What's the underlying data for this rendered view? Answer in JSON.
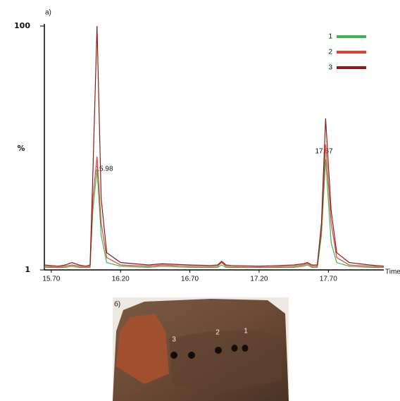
{
  "chart_data": {
    "type": "line",
    "panel_label": "a)",
    "y_label": "%",
    "x_label": "Time",
    "x": [
      15.65,
      15.75,
      15.8,
      15.85,
      15.9,
      15.95,
      15.98,
      16.0,
      16.03,
      16.06,
      16.1,
      16.2,
      16.4,
      16.5,
      16.7,
      16.85,
      16.9,
      16.93,
      16.96,
      17.0,
      17.2,
      17.45,
      17.52,
      17.55,
      17.58,
      17.62,
      17.65,
      17.68,
      17.72,
      17.76,
      17.85,
      18.0,
      18.1
    ],
    "series": [
      {
        "name": "1",
        "color": "#3cb54a",
        "values": [
          2,
          2,
          2,
          2.5,
          2,
          2,
          2,
          25,
          42,
          15,
          4,
          2.5,
          2,
          2.5,
          2,
          2,
          2,
          3,
          2,
          2,
          2,
          2,
          2.5,
          3,
          2,
          2,
          15,
          46,
          12,
          4,
          2.5,
          2,
          2
        ]
      },
      {
        "name": "2",
        "color": "#e0403a",
        "values": [
          2.5,
          2,
          2.5,
          3,
          2.5,
          2,
          2.5,
          30,
          47,
          20,
          6,
          3,
          2.5,
          3,
          2.5,
          2.3,
          2.5,
          4,
          2.5,
          2.3,
          2,
          2.5,
          3,
          3.5,
          2.5,
          2.5,
          18,
          52,
          20,
          6,
          3,
          2.5,
          2
        ]
      },
      {
        "name": "3",
        "color": "#8b1a1a",
        "values": [
          3,
          2.5,
          3,
          4,
          3,
          2.5,
          3,
          40,
          100,
          30,
          8,
          4,
          3,
          3.5,
          3,
          2.8,
          3,
          4.5,
          3,
          2.8,
          2.5,
          3,
          3.5,
          4,
          3,
          3,
          20,
          62.5,
          25,
          8,
          4,
          3,
          2.5
        ]
      }
    ],
    "xlim": [
      15.65,
      18.1
    ],
    "xticks": [
      {
        "value": 15.7,
        "label": "15.70"
      },
      {
        "value": 16.2,
        "label": "16.20"
      },
      {
        "value": 16.7,
        "label": "16.70"
      },
      {
        "value": 17.2,
        "label": "17.20"
      },
      {
        "value": 17.7,
        "label": "17.70"
      }
    ],
    "ylim": [
      1,
      100
    ],
    "yticks": [
      1,
      100
    ],
    "annotations": [
      "15.98",
      "17.67"
    ],
    "legend": "top-right"
  },
  "photo": {
    "panel_label": "б)",
    "labels": [
      "3",
      "2",
      "1"
    ]
  }
}
